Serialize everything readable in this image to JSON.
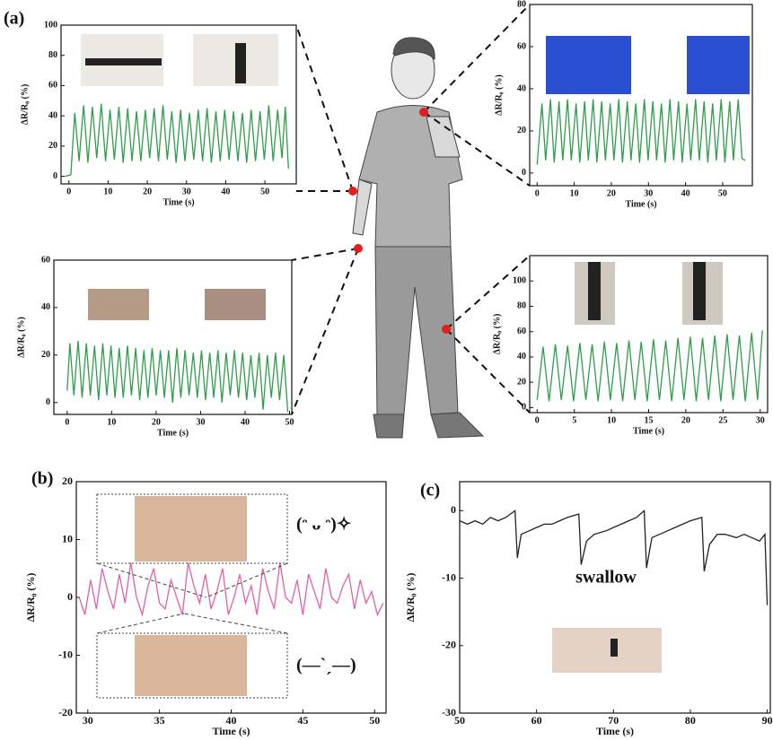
{
  "panel_labels": [
    "(a)",
    "(b)",
    "(c)"
  ],
  "chart_data": [
    {
      "type": "line",
      "x_label": "Time (s)",
      "y_label": "ΔR/R₀ (%)",
      "xlim": [
        -2,
        58
      ],
      "ylim": [
        -5,
        100
      ],
      "xticks": [
        0,
        10,
        20,
        30,
        40,
        50
      ],
      "yticks": [
        0,
        20,
        40,
        60,
        80,
        100
      ],
      "x": [
        -1,
        0.5,
        1.5,
        2.6,
        3.75,
        4.85,
        6,
        7.1,
        8.25,
        9.35,
        10.5,
        11.6,
        12.75,
        13.85,
        15,
        16.1,
        17.25,
        18.35,
        19.5,
        20.6,
        21.75,
        22.85,
        24,
        25.1,
        26.25,
        27.35,
        28.5,
        29.6,
        30.75,
        31.85,
        33,
        34.1,
        35.25,
        36.35,
        37.5,
        38.6,
        39.75,
        40.85,
        42,
        43.1,
        44.25,
        45.35,
        46.5,
        47.6,
        48.75,
        49.85,
        51,
        52.1,
        53.25,
        54.35,
        55.2,
        56
      ],
      "series": [
        {
          "color": "#2e9e4a",
          "values": [
            0,
            1,
            42,
            10,
            47,
            9,
            46,
            12,
            48,
            10,
            44,
            11,
            46,
            9,
            45,
            10,
            43,
            10,
            44,
            12,
            45,
            10,
            47,
            11,
            43,
            9,
            44,
            10,
            42,
            11,
            44,
            10,
            45,
            9,
            43,
            10,
            44,
            11,
            43,
            10,
            42,
            9,
            44,
            10,
            43,
            11,
            47,
            10,
            44,
            12,
            46,
            5
          ]
        }
      ]
    },
    {
      "type": "line",
      "x_label": "Time (s)",
      "y_label": "ΔR/R₀ (%)",
      "xlim": [
        -2,
        58
      ],
      "ylim": [
        -6,
        80
      ],
      "xticks": [
        0,
        10,
        20,
        30,
        40,
        50
      ],
      "yticks": [
        0,
        20,
        40,
        60,
        80
      ],
      "x": [
        0,
        1.3,
        2.3,
        3.6,
        4.6,
        5.9,
        6.9,
        8.2,
        9.2,
        10.5,
        11.5,
        12.8,
        13.8,
        15.1,
        16.1,
        17.4,
        18.4,
        19.7,
        20.7,
        22,
        23,
        24.3,
        25.3,
        26.6,
        27.6,
        28.9,
        29.9,
        31.2,
        32.2,
        33.5,
        34.5,
        35.8,
        36.8,
        38.1,
        39.1,
        40.4,
        41.4,
        42.7,
        43.7,
        45,
        46,
        47.3,
        48.3,
        49.6,
        50.6,
        51.9,
        52.9,
        54.2,
        55.2,
        56
      ],
      "series": [
        {
          "color": "#2e9e4a",
          "values": [
            4,
            33,
            6,
            35,
            5,
            34,
            6,
            35,
            6,
            33,
            5,
            34,
            6,
            35,
            5,
            34,
            6,
            33,
            6,
            35,
            5,
            34,
            6,
            33,
            5,
            35,
            6,
            34,
            6,
            33,
            5,
            35,
            6,
            34,
            5,
            33,
            6,
            35,
            6,
            34,
            5,
            33,
            6,
            35,
            5,
            34,
            6,
            35,
            7,
            6
          ]
        }
      ]
    },
    {
      "type": "line",
      "x_label": "Time (s)",
      "y_label": "ΔR/R₀ (%)",
      "xlim": [
        -3,
        50.5
      ],
      "ylim": [
        -5,
        60
      ],
      "xticks": [
        0,
        10,
        20,
        30,
        40,
        50
      ],
      "yticks": [
        0,
        20,
        40,
        60
      ],
      "x": [
        0,
        0.6,
        1.5,
        2.45,
        3.35,
        4.3,
        5.2,
        6.15,
        7.05,
        8,
        8.9,
        9.85,
        10.75,
        11.7,
        12.6,
        13.55,
        14.45,
        15.4,
        16.3,
        17.25,
        18.15,
        19.1,
        20,
        20.95,
        21.85,
        22.8,
        23.7,
        24.65,
        25.55,
        26.5,
        27.4,
        28.35,
        29.25,
        30.2,
        31.1,
        32.05,
        32.95,
        33.9,
        34.8,
        35.75,
        36.65,
        37.6,
        38.5,
        39.45,
        40.35,
        41.3,
        42.2,
        43.15,
        44.05,
        45,
        45.9,
        46.85,
        47.75,
        48.7,
        49.6
      ],
      "series": [
        {
          "color": "#2e9e4a",
          "values": [
            5,
            25,
            3,
            26,
            2,
            25,
            3,
            24,
            1,
            25,
            3,
            24,
            2,
            23,
            2,
            24,
            3,
            23,
            1,
            22,
            2,
            23,
            3,
            22,
            2,
            22,
            0,
            23,
            2,
            22,
            3,
            21,
            2,
            22,
            1,
            21,
            2,
            22,
            0,
            21,
            3,
            22,
            2,
            21,
            1,
            20,
            2,
            21,
            -3,
            20,
            2,
            21,
            1,
            20,
            -4
          ]
        }
      ]
    },
    {
      "type": "line",
      "x_label": "Time (s)",
      "y_label": "ΔR/R₀ (%)",
      "xlim": [
        -1,
        31
      ],
      "ylim": [
        -4,
        120
      ],
      "xticks": [
        0,
        5,
        10,
        15,
        20,
        25,
        30
      ],
      "yticks": [
        0,
        20,
        40,
        60,
        80,
        100
      ],
      "x": [
        0,
        0.8,
        1.6,
        2.45,
        3.25,
        4.1,
        4.9,
        5.75,
        6.55,
        7.4,
        8.2,
        9.05,
        9.85,
        10.7,
        11.5,
        12.35,
        13.15,
        14,
        14.8,
        15.65,
        16.45,
        17.3,
        18.1,
        18.95,
        19.75,
        20.6,
        21.4,
        22.25,
        23.05,
        23.9,
        24.7,
        25.55,
        26.35,
        27.2,
        28,
        28.85,
        29.65,
        30.3
      ],
      "series": [
        {
          "color": "#2e9e4a",
          "values": [
            6,
            48,
            5,
            50,
            6,
            49,
            5,
            51,
            6,
            50,
            5,
            52,
            6,
            51,
            5,
            53,
            6,
            52,
            5,
            54,
            6,
            53,
            5,
            55,
            6,
            56,
            5,
            55,
            6,
            57,
            5,
            58,
            6,
            57,
            5,
            59,
            6,
            61
          ]
        }
      ]
    },
    {
      "type": "line",
      "x_label": "Time (s)",
      "y_label": "ΔR/R₀ (%)",
      "xlim": [
        29.2,
        50.8
      ],
      "ylim": [
        -20,
        20
      ],
      "xticks": [
        30,
        35,
        40,
        45,
        50
      ],
      "yticks": [
        -20,
        -10,
        0,
        10,
        20
      ],
      "annotations": [
        "(ᵔ ᴗ ᵔ)✧",
        "(—ˋˏ—)"
      ],
      "x": [
        29.4,
        29.8,
        30.2,
        30.6,
        31,
        31.4,
        31.8,
        32.2,
        32.6,
        33,
        33.4,
        33.8,
        34.2,
        34.6,
        35,
        35.4,
        35.8,
        36.2,
        36.6,
        37,
        37.4,
        37.8,
        38.2,
        38.6,
        39,
        39.4,
        39.8,
        40.2,
        40.6,
        41,
        41.4,
        41.8,
        42.2,
        42.6,
        43,
        43.4,
        43.8,
        44.2,
        44.6,
        45,
        45.4,
        45.8,
        46.2,
        46.6,
        47,
        47.4,
        47.8,
        48.2,
        48.6,
        49,
        49.4,
        49.8,
        50.2,
        50.6
      ],
      "series": [
        {
          "color": "#e060a8",
          "values": [
            0,
            -3,
            3,
            -2,
            5,
            1,
            -2,
            4,
            -1,
            6,
            0,
            -3,
            2,
            5,
            -1,
            -2,
            3,
            0,
            -3,
            6,
            2,
            -1,
            4,
            -2,
            1,
            5,
            -3,
            0,
            4,
            -1,
            2,
            -3,
            5,
            1,
            -2,
            6,
            0,
            -1,
            3,
            -3,
            4,
            1,
            -2,
            5,
            0,
            -1,
            2,
            4,
            -2,
            3,
            -1,
            1,
            -3,
            -1
          ]
        }
      ]
    },
    {
      "type": "line",
      "x_label": "Time (s)",
      "y_label": "ΔR/R₀ (%)",
      "xlim": [
        50,
        90.4
      ],
      "ylim": [
        -30,
        4.3
      ],
      "xticks": [
        50,
        60,
        70,
        80,
        90
      ],
      "yticks": [
        -30,
        -20,
        -10,
        0
      ],
      "annotations": [
        "swallow"
      ],
      "x": [
        50,
        51,
        52,
        53,
        54,
        55,
        56,
        57.2,
        57.5,
        58,
        59,
        60,
        61,
        62,
        63,
        64,
        65.5,
        65.8,
        66.5,
        67.5,
        69,
        70,
        71,
        72,
        73,
        74,
        74.3,
        75,
        76,
        77,
        78,
        79,
        80,
        81.5,
        81.8,
        82.5,
        83.5,
        84.5,
        86,
        87,
        88,
        89,
        89.7,
        90
      ],
      "series": [
        {
          "color": "#222222",
          "values": [
            -1.5,
            -2,
            -1.5,
            -2,
            -1,
            -1.5,
            -1,
            0,
            -7,
            -3.5,
            -3,
            -2.5,
            -2,
            -2,
            -1.5,
            -1,
            -0.5,
            -8,
            -4.5,
            -3.5,
            -3,
            -2.5,
            -2,
            -1.5,
            -1,
            0,
            -8.5,
            -4,
            -3.5,
            -3,
            -2.5,
            -2,
            -1.5,
            -1,
            -9,
            -5,
            -3.5,
            -3.5,
            -4,
            -3.5,
            -4,
            -4.5,
            -3.5,
            -14
          ]
        }
      ]
    }
  ]
}
